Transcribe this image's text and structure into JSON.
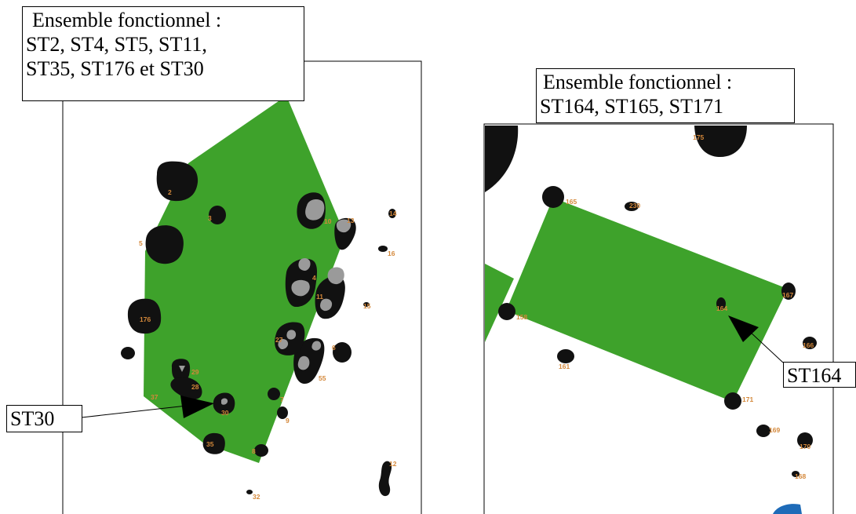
{
  "colors": {
    "zone": "#3ea22b",
    "feature": "#111111",
    "inner": "#9a9a9a",
    "label": "#d4883a",
    "water": "#1e6bb8"
  },
  "left_panel": {
    "callout_title": "Ensemble fonctionnel :",
    "callout_line1": "ST2, ST4, ST5, ST11,",
    "callout_line2": "ST35, ST176 et ST30",
    "pointer_label": "ST30",
    "feature_labels": [
      "2",
      "3",
      "5",
      "176",
      "29",
      "28",
      "37",
      "30",
      "35",
      "8",
      "9",
      "7",
      "55",
      "6",
      "27",
      "4",
      "11",
      "10",
      "13",
      "14",
      "16",
      "15",
      "32",
      "12"
    ]
  },
  "right_panel": {
    "callout_title": "Ensemble fonctionnel :",
    "callout_line1": "ST164, ST165, ST171",
    "pointer_label": "ST164",
    "feature_labels": [
      "175",
      "165",
      "230",
      "158",
      "164",
      "167",
      "166",
      "161",
      "171",
      "169",
      "170",
      "168"
    ]
  }
}
